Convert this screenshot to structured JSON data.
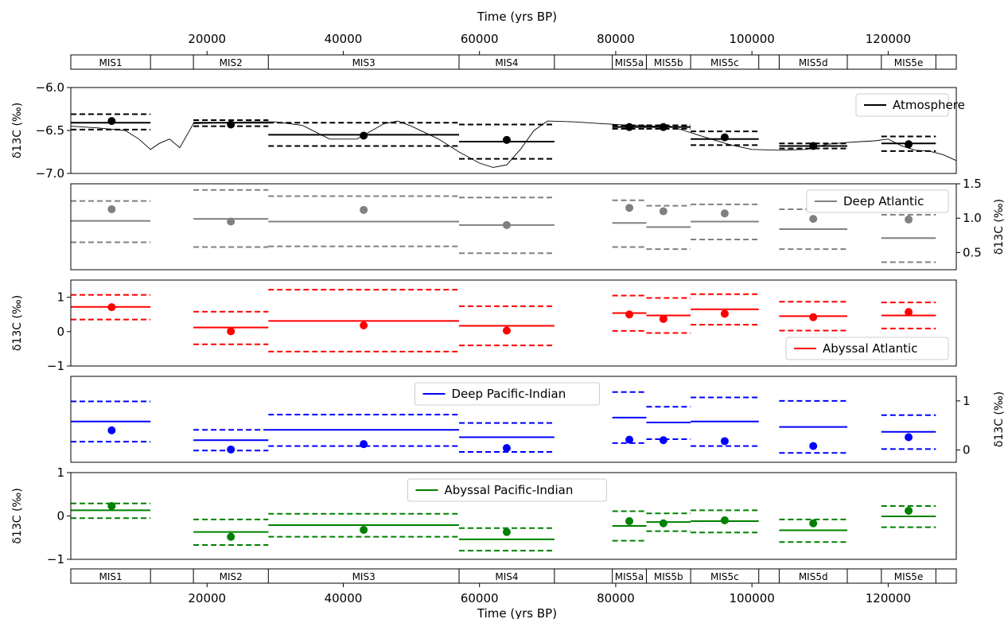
{
  "figure": {
    "xlabel": "Time (yrs BP)",
    "xlim": [
      0,
      130000
    ],
    "xticks": [
      20000,
      40000,
      60000,
      80000,
      100000,
      120000
    ],
    "xtick_labels": [
      "20000",
      "40000",
      "60000",
      "80000",
      "100000",
      "120000"
    ]
  },
  "stages": [
    {
      "label": "MIS1",
      "start": 0,
      "end": 11700
    },
    {
      "label": "",
      "start": 11700,
      "end": 18000
    },
    {
      "label": "MIS2",
      "start": 18000,
      "end": 29000
    },
    {
      "label": "MIS3",
      "start": 29000,
      "end": 57000
    },
    {
      "label": "MIS4",
      "start": 57000,
      "end": 71000
    },
    {
      "label": "",
      "start": 71000,
      "end": 79500
    },
    {
      "label": "MIS5a",
      "start": 79500,
      "end": 84500
    },
    {
      "label": "MIS5b",
      "start": 84500,
      "end": 91000
    },
    {
      "label": "MIS5c",
      "start": 91000,
      "end": 101000
    },
    {
      "label": "",
      "start": 101000,
      "end": 104000
    },
    {
      "label": "MIS5d",
      "start": 104000,
      "end": 114000
    },
    {
      "label": "",
      "start": 114000,
      "end": 119000
    },
    {
      "label": "MIS5e",
      "start": 119000,
      "end": 127000
    },
    {
      "label": "",
      "start": 127000,
      "end": 130000
    }
  ],
  "chart_data": [
    {
      "type": "line",
      "panel": "Atmosphere",
      "ylabel": "δ13C (‰)",
      "ylim": [
        -7.0,
        -6.0
      ],
      "yticks": [
        -7.0,
        -6.5,
        -6.0
      ],
      "ytick_labels": [
        "−7.0",
        "−6.5",
        "−6.0"
      ],
      "yaxis_side": "left",
      "color": "#000000",
      "legend": "Atmosphere",
      "legend_pos": "top-right",
      "curve": {
        "x": [
          0,
          4000,
          8000,
          10000,
          11700,
          13000,
          14500,
          16000,
          18000,
          22000,
          26000,
          30000,
          34000,
          36000,
          38000,
          42000,
          46000,
          48000,
          50000,
          54000,
          57000,
          60000,
          62000,
          64000,
          66000,
          68000,
          70000,
          74000,
          78000,
          82000,
          86000,
          88000,
          90000,
          92000,
          94000,
          97000,
          100000,
          104000,
          108000,
          111000,
          114000,
          116000,
          118000,
          120000,
          122000,
          124000,
          126000,
          128000,
          130000
        ],
        "y": [
          -6.45,
          -6.47,
          -6.5,
          -6.6,
          -6.72,
          -6.65,
          -6.6,
          -6.7,
          -6.42,
          -6.41,
          -6.4,
          -6.4,
          -6.44,
          -6.52,
          -6.6,
          -6.6,
          -6.42,
          -6.39,
          -6.45,
          -6.6,
          -6.75,
          -6.88,
          -6.93,
          -6.9,
          -6.72,
          -6.5,
          -6.39,
          -6.4,
          -6.42,
          -6.44,
          -6.45,
          -6.45,
          -6.5,
          -6.55,
          -6.6,
          -6.67,
          -6.72,
          -6.73,
          -6.72,
          -6.66,
          -6.64,
          -6.63,
          -6.62,
          -6.6,
          -6.68,
          -6.73,
          -6.74,
          -6.78,
          -6.85
        ]
      },
      "stages": [
        {
          "label": "MIS1",
          "start": 0,
          "end": 11700,
          "mean": -6.41,
          "upper": -6.31,
          "lower": -6.49,
          "point_x": 6000,
          "point": -6.39
        },
        {
          "label": "MIS2",
          "start": 18000,
          "end": 29000,
          "mean": -6.41,
          "upper": -6.38,
          "lower": -6.45,
          "point_x": 23500,
          "point": -6.43
        },
        {
          "label": "MIS3",
          "start": 29000,
          "end": 57000,
          "mean": -6.55,
          "upper": -6.41,
          "lower": -6.68,
          "point_x": 43000,
          "point": -6.56
        },
        {
          "label": "MIS4",
          "start": 57000,
          "end": 71000,
          "mean": -6.63,
          "upper": -6.43,
          "lower": -6.83,
          "point_x": 64000,
          "point": -6.61
        },
        {
          "label": "MIS5a",
          "start": 79500,
          "end": 84500,
          "mean": -6.46,
          "upper": -6.44,
          "lower": -6.48,
          "point_x": 82000,
          "point": -6.46
        },
        {
          "label": "MIS5b",
          "start": 84500,
          "end": 91000,
          "mean": -6.46,
          "upper": -6.44,
          "lower": -6.48,
          "point_x": 87000,
          "point": -6.46
        },
        {
          "label": "MIS5c",
          "start": 91000,
          "end": 101000,
          "mean": -6.6,
          "upper": -6.51,
          "lower": -6.67,
          "point_x": 96000,
          "point": -6.58
        },
        {
          "label": "MIS5d",
          "start": 104000,
          "end": 114000,
          "mean": -6.68,
          "upper": -6.65,
          "lower": -6.71,
          "point_x": 109000,
          "point": -6.68
        },
        {
          "label": "MIS5e",
          "start": 119000,
          "end": 127000,
          "mean": -6.65,
          "upper": -6.57,
          "lower": -6.74,
          "point_x": 123000,
          "point": -6.66
        }
      ]
    },
    {
      "type": "line",
      "panel": "Deep Atlantic",
      "ylabel": "δ13C (‰)",
      "ylim": [
        0.25,
        1.5
      ],
      "yticks": [
        0.5,
        1.0,
        1.5
      ],
      "ytick_labels": [
        "0.5",
        "1.0",
        "1.5"
      ],
      "yaxis_side": "right",
      "color": "#808080",
      "legend": "Deep Atlantic",
      "legend_pos": "top-right",
      "stages": [
        {
          "label": "MIS1",
          "start": 0,
          "end": 11700,
          "mean": 0.96,
          "upper": 1.25,
          "lower": 0.65,
          "point_x": 6000,
          "point": 1.13
        },
        {
          "label": "MIS2",
          "start": 18000,
          "end": 29000,
          "mean": 0.99,
          "upper": 1.41,
          "lower": 0.58,
          "point_x": 23500,
          "point": 0.95
        },
        {
          "label": "MIS3",
          "start": 29000,
          "end": 57000,
          "mean": 0.95,
          "upper": 1.32,
          "lower": 0.59,
          "point_x": 43000,
          "point": 1.12
        },
        {
          "label": "MIS4",
          "start": 57000,
          "end": 71000,
          "mean": 0.9,
          "upper": 1.3,
          "lower": 0.49,
          "point_x": 64000,
          "point": 0.9
        },
        {
          "label": "MIS5a",
          "start": 79500,
          "end": 84500,
          "mean": 0.93,
          "upper": 1.26,
          "lower": 0.58,
          "point_x": 82000,
          "point": 1.15
        },
        {
          "label": "MIS5b",
          "start": 84500,
          "end": 91000,
          "mean": 0.87,
          "upper": 1.18,
          "lower": 0.55,
          "point_x": 87000,
          "point": 1.1
        },
        {
          "label": "MIS5c",
          "start": 91000,
          "end": 101000,
          "mean": 0.95,
          "upper": 1.2,
          "lower": 0.69,
          "point_x": 96000,
          "point": 1.07
        },
        {
          "label": "MIS5d",
          "start": 104000,
          "end": 114000,
          "mean": 0.84,
          "upper": 1.13,
          "lower": 0.55,
          "point_x": 109000,
          "point": 0.99
        },
        {
          "label": "MIS5e",
          "start": 119000,
          "end": 127000,
          "mean": 0.71,
          "upper": 1.05,
          "lower": 0.36,
          "point_x": 123000,
          "point": 0.98
        }
      ]
    },
    {
      "type": "line",
      "panel": "Abyssal Atlantic",
      "ylabel": "δ13C (‰)",
      "ylim": [
        -1.0,
        1.5
      ],
      "yticks": [
        -1,
        0,
        1
      ],
      "ytick_labels": [
        "−1",
        "0",
        "1"
      ],
      "yaxis_side": "left",
      "color": "#ff0000",
      "legend": "Abyssal Atlantic",
      "legend_pos": "lower-right",
      "stages": [
        {
          "label": "MIS1",
          "start": 0,
          "end": 11700,
          "mean": 0.72,
          "upper": 1.07,
          "lower": 0.35,
          "point_x": 6000,
          "point": 0.71
        },
        {
          "label": "MIS2",
          "start": 18000,
          "end": 29000,
          "mean": 0.12,
          "upper": 0.58,
          "lower": -0.37,
          "point_x": 23500,
          "point": 0.01
        },
        {
          "label": "MIS3",
          "start": 29000,
          "end": 57000,
          "mean": 0.31,
          "upper": 1.22,
          "lower": -0.58,
          "point_x": 43000,
          "point": 0.18
        },
        {
          "label": "MIS4",
          "start": 57000,
          "end": 71000,
          "mean": 0.17,
          "upper": 0.74,
          "lower": -0.4,
          "point_x": 64000,
          "point": 0.03
        },
        {
          "label": "MIS5a",
          "start": 79500,
          "end": 84500,
          "mean": 0.54,
          "upper": 1.05,
          "lower": 0.02,
          "point_x": 82000,
          "point": 0.5
        },
        {
          "label": "MIS5b",
          "start": 84500,
          "end": 91000,
          "mean": 0.47,
          "upper": 0.98,
          "lower": -0.04,
          "point_x": 87000,
          "point": 0.37
        },
        {
          "label": "MIS5c",
          "start": 91000,
          "end": 101000,
          "mean": 0.65,
          "upper": 1.09,
          "lower": 0.2,
          "point_x": 96000,
          "point": 0.52
        },
        {
          "label": "MIS5d",
          "start": 104000,
          "end": 114000,
          "mean": 0.45,
          "upper": 0.87,
          "lower": 0.03,
          "point_x": 109000,
          "point": 0.42
        },
        {
          "label": "MIS5e",
          "start": 119000,
          "end": 127000,
          "mean": 0.47,
          "upper": 0.85,
          "lower": 0.09,
          "point_x": 123000,
          "point": 0.57
        }
      ]
    },
    {
      "type": "line",
      "panel": "Deep Pacific-Indian",
      "ylabel": "δ13C (‰)",
      "ylim": [
        -0.25,
        1.5
      ],
      "yticks": [
        0,
        1
      ],
      "ytick_labels": [
        "0",
        "1"
      ],
      "yaxis_side": "right",
      "color": "#0000ff",
      "legend": "Deep Pacific-Indian",
      "legend_pos": "top-center",
      "stages": [
        {
          "label": "MIS1",
          "start": 0,
          "end": 11700,
          "mean": 0.58,
          "upper": 0.99,
          "lower": 0.17,
          "point_x": 6000,
          "point": 0.4
        },
        {
          "label": "MIS2",
          "start": 18000,
          "end": 29000,
          "mean": 0.2,
          "upper": 0.41,
          "lower": -0.01,
          "point_x": 23500,
          "point": 0.01
        },
        {
          "label": "MIS3",
          "start": 29000,
          "end": 57000,
          "mean": 0.41,
          "upper": 0.72,
          "lower": 0.08,
          "point_x": 43000,
          "point": 0.12
        },
        {
          "label": "MIS4",
          "start": 57000,
          "end": 71000,
          "mean": 0.26,
          "upper": 0.55,
          "lower": -0.04,
          "point_x": 64000,
          "point": 0.04
        },
        {
          "label": "MIS5a",
          "start": 79500,
          "end": 84500,
          "mean": 0.66,
          "upper": 1.18,
          "lower": 0.14,
          "point_x": 82000,
          "point": 0.21
        },
        {
          "label": "MIS5b",
          "start": 84500,
          "end": 91000,
          "mean": 0.56,
          "upper": 0.88,
          "lower": 0.22,
          "point_x": 87000,
          "point": 0.2
        },
        {
          "label": "MIS5c",
          "start": 91000,
          "end": 101000,
          "mean": 0.58,
          "upper": 1.07,
          "lower": 0.08,
          "point_x": 96000,
          "point": 0.18
        },
        {
          "label": "MIS5d",
          "start": 104000,
          "end": 114000,
          "mean": 0.47,
          "upper": 1.0,
          "lower": -0.06,
          "point_x": 109000,
          "point": 0.08
        },
        {
          "label": "MIS5e",
          "start": 119000,
          "end": 127000,
          "mean": 0.37,
          "upper": 0.71,
          "lower": 0.02,
          "point_x": 123000,
          "point": 0.26
        }
      ]
    },
    {
      "type": "line",
      "panel": "Abyssal Pacific-Indian",
      "ylabel": "δ13C (‰)",
      "ylim": [
        -1.0,
        1.0
      ],
      "yticks": [
        -1,
        0,
        1
      ],
      "ytick_labels": [
        "−1",
        "0",
        "1"
      ],
      "yaxis_side": "left",
      "color": "#008000",
      "legend": "Abyssal Pacific-Indian",
      "legend_pos": "top-center",
      "stages": [
        {
          "label": "MIS1",
          "start": 0,
          "end": 11700,
          "mean": 0.13,
          "upper": 0.29,
          "lower": -0.05,
          "point_x": 6000,
          "point": 0.23
        },
        {
          "label": "MIS2",
          "start": 18000,
          "end": 29000,
          "mean": -0.37,
          "upper": -0.08,
          "lower": -0.67,
          "point_x": 23500,
          "point": -0.48
        },
        {
          "label": "MIS3",
          "start": 29000,
          "end": 57000,
          "mean": -0.21,
          "upper": 0.05,
          "lower": -0.48,
          "point_x": 43000,
          "point": -0.32
        },
        {
          "label": "MIS4",
          "start": 57000,
          "end": 71000,
          "mean": -0.54,
          "upper": -0.28,
          "lower": -0.8,
          "point_x": 64000,
          "point": -0.37
        },
        {
          "label": "MIS5a",
          "start": 79500,
          "end": 84500,
          "mean": -0.23,
          "upper": 0.11,
          "lower": -0.57,
          "point_x": 82000,
          "point": -0.12
        },
        {
          "label": "MIS5b",
          "start": 84500,
          "end": 91000,
          "mean": -0.14,
          "upper": 0.06,
          "lower": -0.35,
          "point_x": 87000,
          "point": -0.17
        },
        {
          "label": "MIS5c",
          "start": 91000,
          "end": 101000,
          "mean": -0.12,
          "upper": 0.13,
          "lower": -0.38,
          "point_x": 96000,
          "point": -0.1
        },
        {
          "label": "MIS5d",
          "start": 104000,
          "end": 114000,
          "mean": -0.33,
          "upper": -0.08,
          "lower": -0.6,
          "point_x": 109000,
          "point": -0.17
        },
        {
          "label": "MIS5e",
          "start": 119000,
          "end": 127000,
          "mean": -0.01,
          "upper": 0.23,
          "lower": -0.26,
          "point_x": 123000,
          "point": 0.12
        }
      ]
    }
  ]
}
